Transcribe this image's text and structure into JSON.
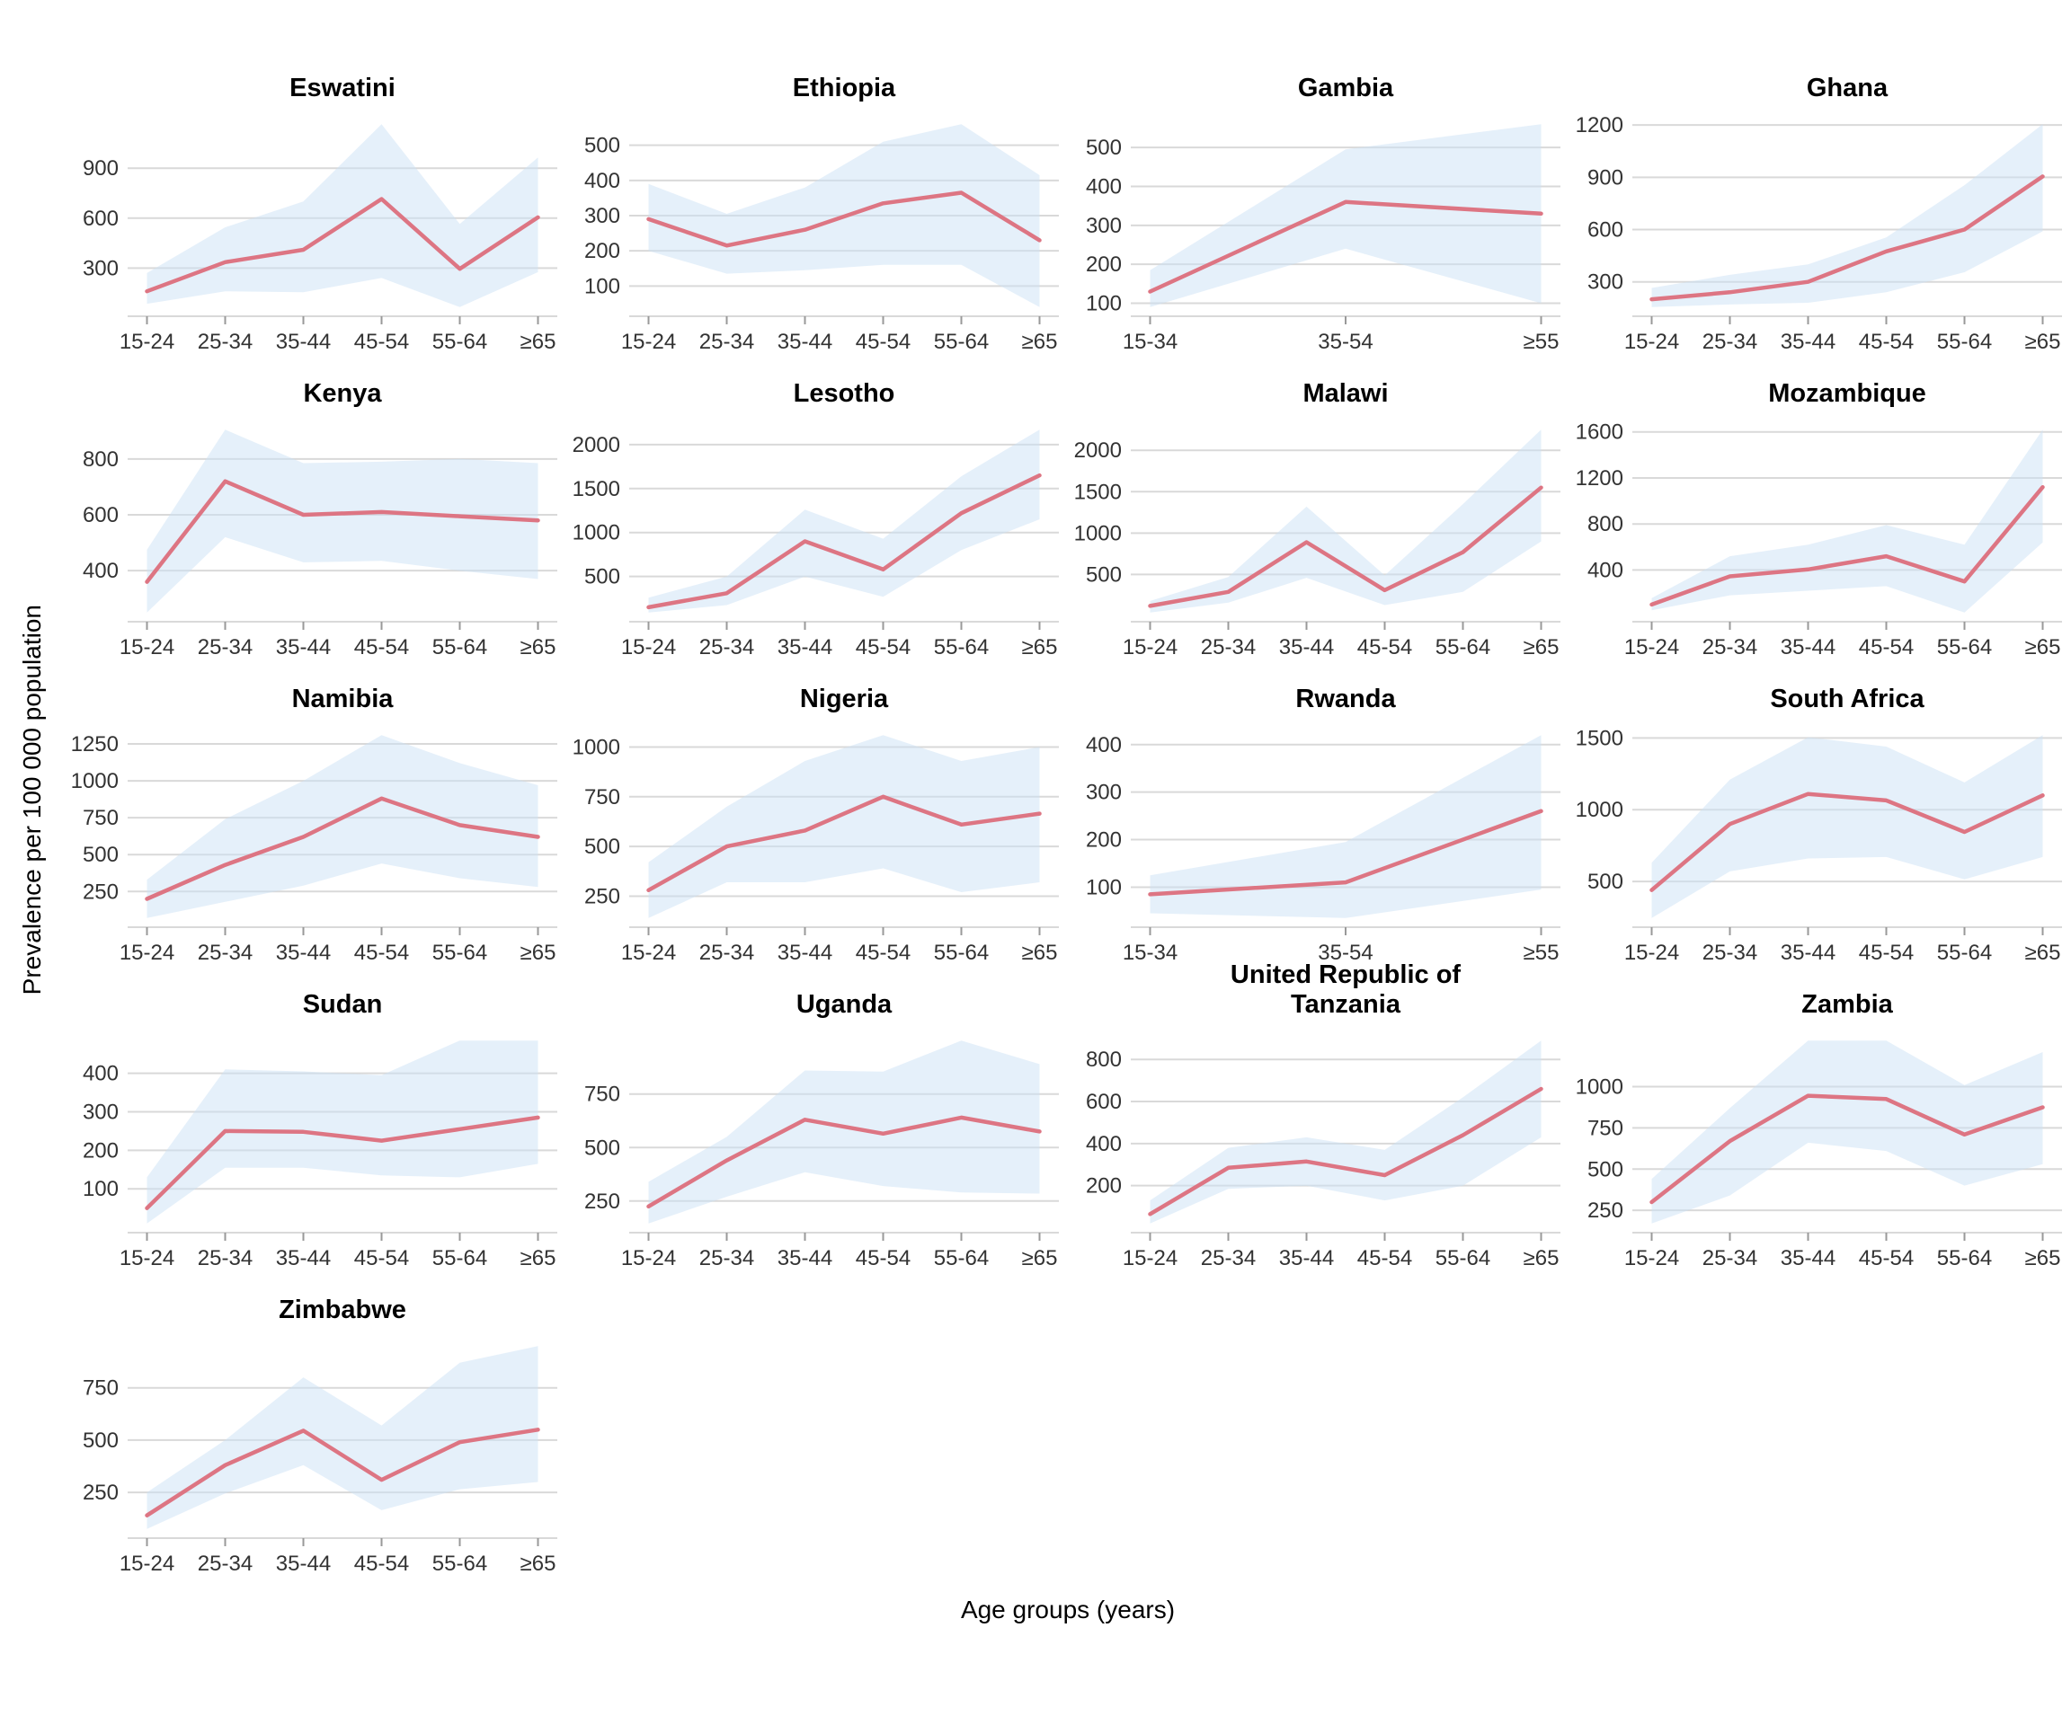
{
  "figure": {
    "y_axis_title": "Prevalence per 100 000 population",
    "x_axis_title": "Age groups (years)",
    "line_color": "#dd7583",
    "band_color": "#cbe1f5",
    "band_opacity": 0.5,
    "grid_color": "#d9d9d9",
    "tick_mark_color": "#999999",
    "tick_text_color": "#333333",
    "title_color": "#000000"
  },
  "chart_data": [
    {
      "type": "line",
      "title": "Eswatini",
      "categories": [
        "15-24",
        "25-34",
        "35-44",
        "45-54",
        "55-64",
        "≥65"
      ],
      "values": [
        160,
        335,
        410,
        715,
        295,
        605
      ],
      "band_lower": [
        85,
        160,
        155,
        240,
        65,
        275
      ],
      "band_upper": [
        270,
        545,
        700,
        1165,
        565,
        965
      ],
      "yticks": [
        300,
        600,
        900
      ]
    },
    {
      "type": "line",
      "title": "Ethiopia",
      "categories": [
        "15-24",
        "25-34",
        "35-44",
        "45-54",
        "55-64",
        "≥65"
      ],
      "values": [
        290,
        215,
        260,
        335,
        365,
        230
      ],
      "band_lower": [
        200,
        135,
        145,
        160,
        160,
        40
      ],
      "band_upper": [
        390,
        305,
        380,
        510,
        560,
        415
      ],
      "yticks": [
        100,
        200,
        300,
        400,
        500
      ]
    },
    {
      "type": "line",
      "title": "Gambia",
      "categories": [
        "15-34",
        "35-54",
        "≥55"
      ],
      "values": [
        130,
        360,
        330
      ],
      "band_lower": [
        90,
        240,
        100
      ],
      "band_upper": [
        185,
        495,
        560
      ],
      "yticks": [
        100,
        200,
        300,
        400,
        500
      ]
    },
    {
      "type": "line",
      "title": "Ghana",
      "categories": [
        "15-24",
        "25-34",
        "35-44",
        "45-54",
        "55-64",
        "≥65"
      ],
      "values": [
        200,
        240,
        300,
        475,
        600,
        905
      ],
      "band_lower": [
        155,
        170,
        180,
        240,
        355,
        590
      ],
      "band_upper": [
        265,
        340,
        400,
        555,
        855,
        1205
      ],
      "yticks": [
        300,
        600,
        900,
        1200
      ]
    },
    {
      "type": "line",
      "title": "Kenya",
      "categories": [
        "15-24",
        "25-34",
        "35-44",
        "45-54",
        "55-64",
        "≥65"
      ],
      "values": [
        360,
        720,
        600,
        610,
        595,
        580
      ],
      "band_lower": [
        250,
        520,
        430,
        435,
        400,
        370
      ],
      "band_upper": [
        475,
        905,
        785,
        790,
        800,
        785
      ],
      "yticks": [
        400,
        600,
        800
      ]
    },
    {
      "type": "line",
      "title": "Lesotho",
      "categories": [
        "15-24",
        "25-34",
        "35-44",
        "45-54",
        "55-64",
        "≥65"
      ],
      "values": [
        150,
        310,
        900,
        580,
        1220,
        1650
      ],
      "band_lower": [
        90,
        175,
        500,
        270,
        800,
        1150
      ],
      "band_upper": [
        260,
        500,
        1260,
        930,
        1640,
        2170
      ],
      "yticks": [
        500,
        1000,
        1500,
        2000
      ]
    },
    {
      "type": "line",
      "title": "Malawi",
      "categories": [
        "15-24",
        "25-34",
        "35-44",
        "45-54",
        "55-64",
        "≥65"
      ],
      "values": [
        120,
        290,
        890,
        310,
        770,
        1550
      ],
      "band_lower": [
        40,
        160,
        460,
        130,
        290,
        900
      ],
      "band_upper": [
        180,
        470,
        1320,
        490,
        1350,
        2250
      ],
      "yticks": [
        500,
        1000,
        1500,
        2000
      ]
    },
    {
      "type": "line",
      "title": "Mozambique",
      "categories": [
        "15-24",
        "25-34",
        "35-44",
        "45-54",
        "55-64",
        "≥65"
      ],
      "values": [
        100,
        345,
        405,
        520,
        300,
        1120
      ],
      "band_lower": [
        50,
        180,
        220,
        260,
        30,
        640
      ],
      "band_upper": [
        155,
        520,
        620,
        790,
        620,
        1620
      ],
      "yticks": [
        400,
        800,
        1200,
        1600
      ]
    },
    {
      "type": "line",
      "title": "Namibia",
      "categories": [
        "15-24",
        "25-34",
        "35-44",
        "45-54",
        "55-64",
        "≥65"
      ],
      "values": [
        200,
        430,
        620,
        880,
        700,
        620
      ],
      "band_lower": [
        70,
        180,
        290,
        440,
        340,
        280
      ],
      "band_upper": [
        330,
        740,
        1000,
        1310,
        1120,
        970
      ],
      "yticks": [
        250,
        500,
        750,
        1000,
        1250
      ]
    },
    {
      "type": "line",
      "title": "Nigeria",
      "categories": [
        "15-24",
        "25-34",
        "35-44",
        "45-54",
        "55-64",
        "≥65"
      ],
      "values": [
        280,
        500,
        580,
        750,
        610,
        665
      ],
      "band_lower": [
        140,
        320,
        320,
        390,
        270,
        320
      ],
      "band_upper": [
        420,
        700,
        930,
        1060,
        930,
        1000
      ],
      "yticks": [
        250,
        500,
        750,
        1000
      ]
    },
    {
      "type": "line",
      "title": "Rwanda",
      "categories": [
        "15-34",
        "35-54",
        "≥55"
      ],
      "values": [
        85,
        110,
        260
      ],
      "band_lower": [
        45,
        35,
        95
      ],
      "band_upper": [
        125,
        195,
        420
      ],
      "yticks": [
        100,
        200,
        300,
        400
      ]
    },
    {
      "type": "line",
      "title": "South Africa",
      "categories": [
        "15-24",
        "25-34",
        "35-44",
        "45-54",
        "55-64",
        "≥65"
      ],
      "values": [
        440,
        900,
        1110,
        1065,
        845,
        1100
      ],
      "band_lower": [
        245,
        570,
        660,
        670,
        515,
        670
      ],
      "band_upper": [
        630,
        1210,
        1505,
        1440,
        1190,
        1520
      ],
      "yticks": [
        500,
        1000,
        1500
      ]
    },
    {
      "type": "line",
      "title": "Sudan",
      "categories": [
        "15-24",
        "25-34",
        "35-44",
        "45-54",
        "55-64",
        "≥65"
      ],
      "values": [
        50,
        250,
        248,
        225,
        255,
        285
      ],
      "band_lower": [
        10,
        155,
        155,
        135,
        130,
        165
      ],
      "band_upper": [
        130,
        410,
        405,
        395,
        485,
        485
      ],
      "yticks": [
        100,
        200,
        300,
        400
      ]
    },
    {
      "type": "line",
      "title": "Uganda",
      "categories": [
        "15-24",
        "25-34",
        "35-44",
        "45-54",
        "55-64",
        "≥65"
      ],
      "values": [
        225,
        440,
        630,
        565,
        640,
        575
      ],
      "band_lower": [
        145,
        270,
        385,
        320,
        290,
        285
      ],
      "band_upper": [
        340,
        550,
        860,
        855,
        1000,
        890
      ],
      "yticks": [
        250,
        500,
        750
      ]
    },
    {
      "type": "line",
      "title": "United Republic of\nTanzania",
      "categories": [
        "15-24",
        "25-34",
        "35-44",
        "45-54",
        "55-64",
        "≥65"
      ],
      "values": [
        65,
        285,
        315,
        250,
        440,
        660
      ],
      "band_lower": [
        20,
        185,
        200,
        130,
        200,
        430
      ],
      "band_upper": [
        130,
        380,
        430,
        370,
        620,
        890
      ],
      "yticks": [
        200,
        400,
        600,
        800
      ]
    },
    {
      "type": "line",
      "title": "Zambia",
      "categories": [
        "15-24",
        "25-34",
        "35-44",
        "45-54",
        "55-64",
        "≥65"
      ],
      "values": [
        300,
        670,
        945,
        925,
        710,
        875
      ],
      "band_lower": [
        170,
        340,
        660,
        610,
        400,
        530
      ],
      "band_upper": [
        440,
        870,
        1280,
        1280,
        1010,
        1210
      ],
      "yticks": [
        250,
        500,
        750,
        1000
      ]
    },
    {
      "type": "line",
      "title": "Zimbabwe",
      "categories": [
        "15-24",
        "25-34",
        "35-44",
        "45-54",
        "55-64",
        "≥65"
      ],
      "values": [
        140,
        380,
        545,
        310,
        490,
        550
      ],
      "band_lower": [
        75,
        245,
        380,
        165,
        265,
        300
      ],
      "band_upper": [
        250,
        500,
        800,
        570,
        870,
        950
      ],
      "yticks": [
        250,
        500,
        750
      ]
    }
  ]
}
